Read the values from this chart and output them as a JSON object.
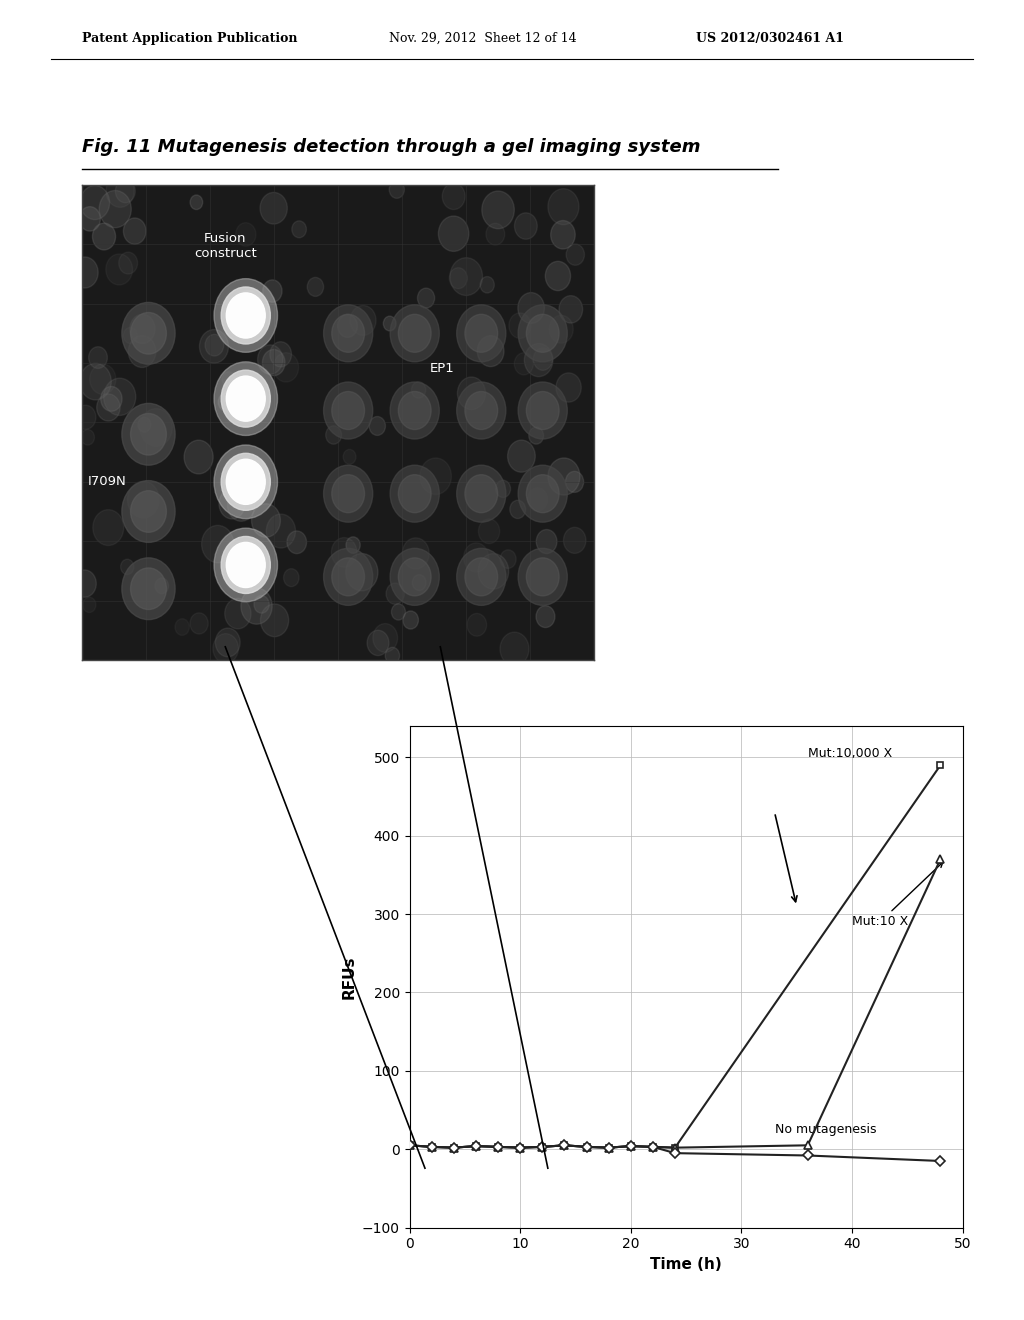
{
  "page_header_left": "Patent Application Publication",
  "page_header_mid": "Nov. 29, 2012  Sheet 12 of 14",
  "page_header_right": "US 2012/0302461 A1",
  "fig_title": "Fig. 11 Mutagenesis detection through a gel imaging system",
  "ylabel": "RFUs",
  "xlabel": "Time (h)",
  "ylim": [
    -100,
    540
  ],
  "xlim": [
    0,
    50
  ],
  "yticks": [
    -100,
    0,
    100,
    200,
    300,
    400,
    500
  ],
  "xticks": [
    0,
    10,
    20,
    30,
    40,
    50
  ],
  "series": [
    {
      "name": "Mut:10,000 X",
      "marker": "s",
      "color": "#222222",
      "x": [
        0,
        2,
        4,
        6,
        8,
        10,
        12,
        14,
        16,
        18,
        20,
        22,
        24,
        48
      ],
      "y": [
        5,
        3,
        2,
        4,
        3,
        2,
        3,
        5,
        3,
        2,
        4,
        3,
        2,
        490
      ]
    },
    {
      "name": "Mut:10 X",
      "marker": "^",
      "color": "#222222",
      "x": [
        0,
        2,
        4,
        6,
        8,
        10,
        12,
        14,
        16,
        18,
        20,
        22,
        24,
        36,
        48
      ],
      "y": [
        5,
        3,
        2,
        4,
        3,
        2,
        3,
        5,
        3,
        2,
        4,
        3,
        2,
        5,
        370
      ]
    },
    {
      "name": "No mutagenesis",
      "marker": "D",
      "color": "#222222",
      "x": [
        0,
        2,
        4,
        6,
        8,
        10,
        12,
        14,
        16,
        18,
        20,
        22,
        24,
        36,
        48
      ],
      "y": [
        5,
        3,
        2,
        4,
        3,
        2,
        3,
        5,
        3,
        2,
        4,
        3,
        -5,
        -8,
        -15
      ]
    }
  ],
  "bg_color": "#ffffff",
  "grid_color": "#bbbbbb",
  "image_bg": "#1a1a1a",
  "header_fontsize": 9,
  "title_fontsize": 13,
  "label_fontsize": 9
}
